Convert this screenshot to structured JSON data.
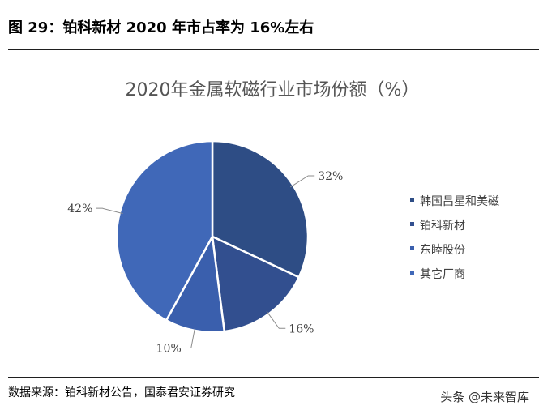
{
  "figure": {
    "title": "图 29：铂科新材 2020 年市占率为 16%左右",
    "source": "数据来源：铂科新材公告，国泰君安证券研究",
    "watermark": "头条 @未来智库"
  },
  "chart_data": {
    "type": "pie",
    "title": "2020年金属软磁行业市场份额（%）",
    "slices": [
      {
        "name": "韩国昌星和美磁",
        "value": 32,
        "label": "32%",
        "color": "#2e4d85"
      },
      {
        "name": "铂科新材",
        "value": 16,
        "label": "16%",
        "color": "#324f8f"
      },
      {
        "name": "东睦股份",
        "value": 10,
        "label": "10%",
        "color": "#3a5fad"
      },
      {
        "name": "其它厂商",
        "value": 42,
        "label": "42%",
        "color": "#4068b8"
      }
    ],
    "legend_position": "right"
  }
}
